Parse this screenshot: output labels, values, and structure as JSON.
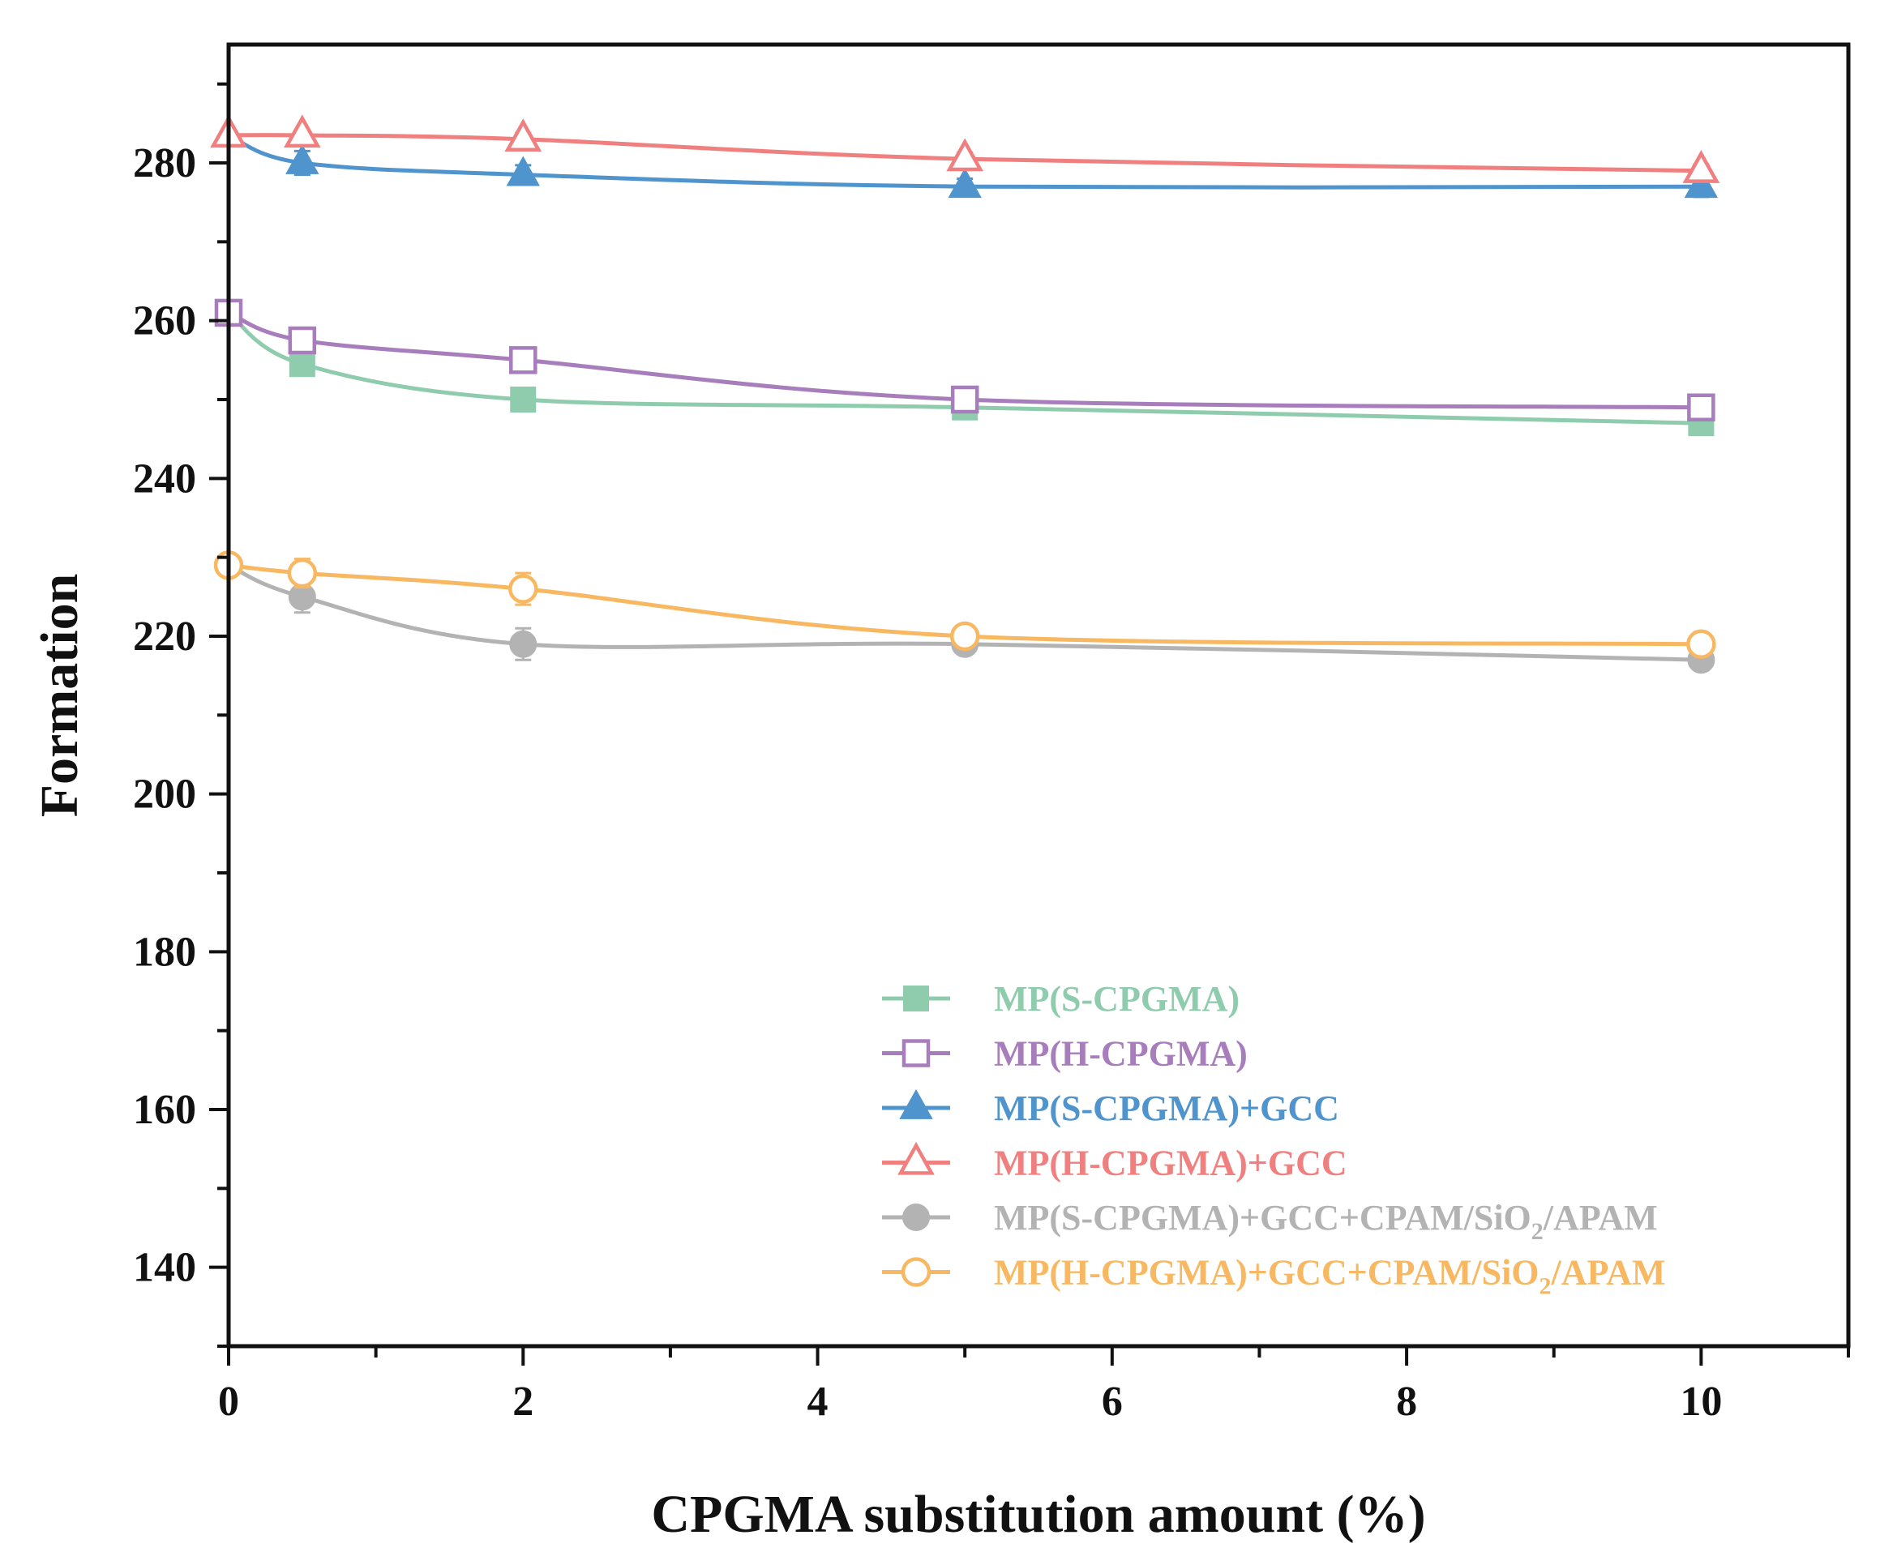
{
  "chart_data": {
    "type": "line",
    "title": "",
    "xlabel": "CPGMA substitution amount (%)",
    "ylabel": "Formation",
    "xlim": [
      0,
      11
    ],
    "ylim": [
      130,
      295
    ],
    "xticks": [
      0,
      2,
      4,
      6,
      8,
      10
    ],
    "yticks": [
      140,
      160,
      180,
      200,
      220,
      240,
      260,
      280
    ],
    "grid": false,
    "legend_position": "bottom-right",
    "x": [
      0,
      0.5,
      2,
      5,
      10
    ],
    "series": [
      {
        "name": "MP(S-CPGMA)",
        "label_main": "MP(S-CPGMA)",
        "values": [
          261,
          254.5,
          250,
          249,
          247
        ],
        "error": [
          0.5,
          0.8,
          1.0,
          0.8,
          0.8
        ],
        "marker": "square-filled",
        "color": "#8FCCAE"
      },
      {
        "name": "MP(H-CPGMA)",
        "label_main": "MP(H-CPGMA)",
        "values": [
          261,
          257.5,
          255,
          250,
          249
        ],
        "error": [
          0.5,
          0.8,
          1.0,
          0.8,
          0.8
        ],
        "marker": "square-open",
        "color": "#A77DBB"
      },
      {
        "name": "MP(S-CPGMA)+GCC",
        "label_main": "MP(S-CPGMA)+GCC",
        "values": [
          283.5,
          280,
          278.5,
          277,
          277
        ],
        "error": [
          0.6,
          1.5,
          1.2,
          1.0,
          1.3
        ],
        "marker": "triangle-filled",
        "color": "#4F94CD"
      },
      {
        "name": "MP(H-CPGMA)+GCC",
        "label_main": "MP(H-CPGMA)+GCC",
        "values": [
          283.5,
          283.5,
          283,
          280.5,
          279
        ],
        "error": [
          0.6,
          0.6,
          0.8,
          0.8,
          0.8
        ],
        "marker": "triangle-open",
        "color": "#F08080"
      },
      {
        "name": "MP(S-CPGMA)+GCC+CPAM/SiO2/APAM",
        "label_main": "MP(S-CPGMA)+GCC+CPAM/SiO",
        "label_sub": "2",
        "label_tail": "/APAM",
        "values": [
          229,
          225,
          219,
          219,
          217
        ],
        "error": [
          0.8,
          2.0,
          2.0,
          0.8,
          0.8
        ],
        "marker": "circle-filled",
        "color": "#B3B3B3"
      },
      {
        "name": "MP(H-CPGMA)+GCC+CPAM/SiO2/APAM",
        "label_main": "MP(H-CPGMA)+GCC+CPAM/SiO",
        "label_sub": "2",
        "label_tail": "/APAM",
        "values": [
          229,
          228,
          226,
          220,
          219
        ],
        "error": [
          0.8,
          1.8,
          2.0,
          1.0,
          1.0
        ],
        "marker": "circle-open",
        "color": "#F8B862"
      }
    ]
  }
}
